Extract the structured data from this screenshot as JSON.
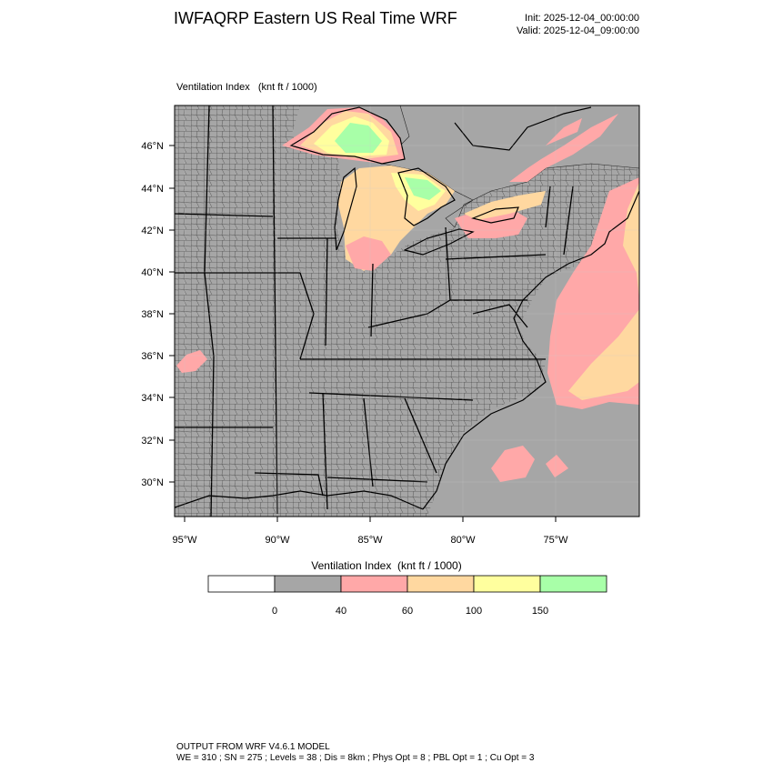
{
  "header": {
    "title": "IWFAQRP Eastern US Real Time WRF",
    "init": "Init: 2025-12-04_00:00:00",
    "valid": "Valid: 2025-12-04_09:00:00"
  },
  "plot": {
    "label": "Ventilation Index   (knt ft / 1000)",
    "lat_labels": [
      "46°N",
      "44°N",
      "42°N",
      "40°N",
      "38°N",
      "36°N",
      "34°N",
      "32°N",
      "30°N"
    ],
    "lon_labels": [
      "95°W",
      "90°W",
      "85°W",
      "80°W",
      "75°W"
    ]
  },
  "colorbar": {
    "label": "Ventilation Index  (knt ft / 1000)",
    "tick_labels": [
      "0",
      "40",
      "60",
      "100",
      "150"
    ],
    "colors": [
      "#ffffff",
      "#a6a6a6",
      "#ffa8a8",
      "#ffd8a0",
      "#ffff9e",
      "#a8ffa8"
    ]
  },
  "colors": {
    "land_base": "#a6a6a6",
    "water": "#a6a6a6"
  },
  "footer": {
    "line1": "OUTPUT FROM WRF V4.6.1 MODEL",
    "line2": "WE = 310 ; SN = 275 ; Levels = 38 ; Dis = 8km ; Phys Opt = 8 ; PBL Opt = 1 ; Cu Opt = 3"
  }
}
